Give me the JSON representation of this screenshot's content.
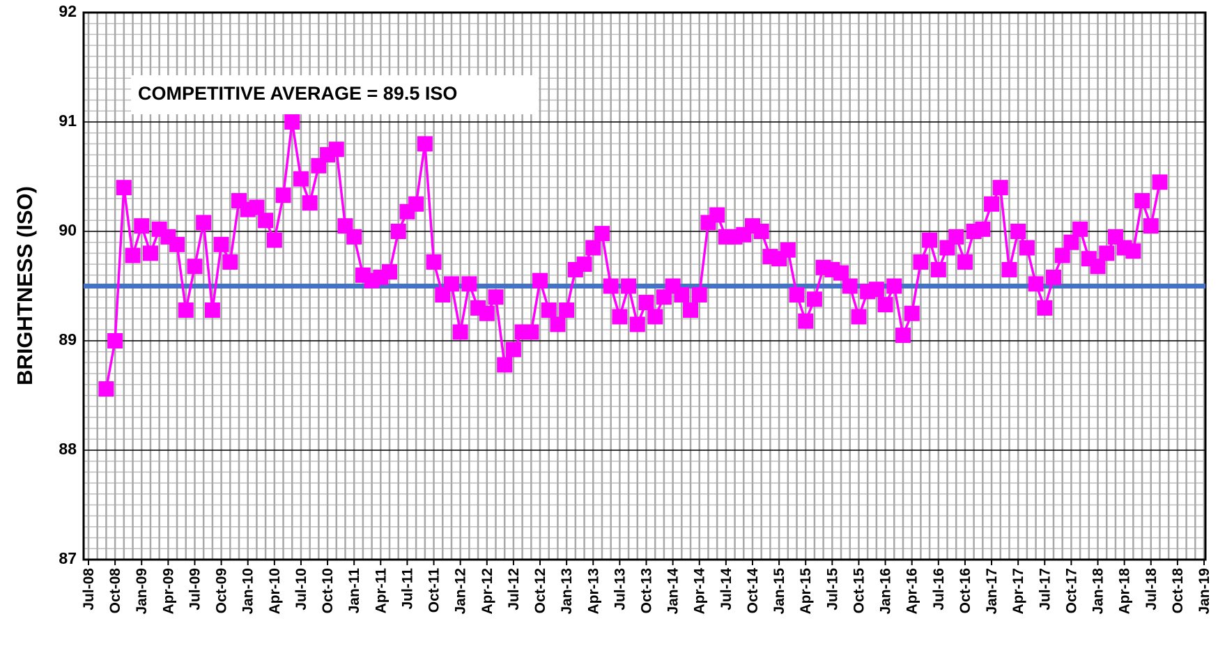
{
  "chart_data": {
    "type": "line",
    "y_label": "BRIGHTNESS (ISO)",
    "categories": [
      "Jul-08",
      null,
      null,
      "Oct-08",
      null,
      null,
      "Jan-09",
      null,
      null,
      "Apr-09",
      null,
      null,
      "Jul-09",
      null,
      null,
      "Oct-09",
      null,
      null,
      "Jan-10",
      null,
      null,
      "Apr-10",
      null,
      null,
      "Jul-10",
      null,
      null,
      "Oct-10",
      null,
      null,
      "Jan-11",
      null,
      null,
      "Apr-11",
      null,
      null,
      "Jul-11",
      null,
      null,
      "Oct-11",
      null,
      null,
      "Jan-12",
      null,
      null,
      "Apr-12",
      null,
      null,
      "Jul-12",
      null,
      null,
      "Oct-12",
      null,
      null,
      "Jan-13",
      null,
      null,
      "Apr-13",
      null,
      null,
      "Jul-13",
      null,
      null,
      "Oct-13",
      null,
      null,
      "Jan-14",
      null,
      null,
      "Apr-14",
      null,
      null,
      "Jul-14",
      null,
      null,
      "Oct-14",
      null,
      null,
      "Jan-15",
      null,
      null,
      "Apr-15",
      null,
      null,
      "Jul-15",
      null,
      null,
      "Oct-15",
      null,
      null,
      "Jan-16",
      null,
      null,
      "Apr-16",
      null,
      null,
      "Jul-16",
      null,
      null,
      "Oct-16",
      null,
      null,
      "Jan-17",
      null,
      null,
      "Apr-17",
      null,
      null,
      "Jul-17",
      null,
      null,
      "Oct-17",
      null,
      null,
      "Jan-18",
      null,
      null,
      "Apr-18",
      null,
      null,
      "Jul-18",
      null,
      null,
      "Oct-18",
      null,
      null,
      "Jan-19"
    ],
    "series": [
      {
        "name": "Brightness",
        "color": "#ff00ff",
        "values": [
          null,
          null,
          88.56,
          89.0,
          90.4,
          89.78,
          90.05,
          89.8,
          90.02,
          89.95,
          89.88,
          89.28,
          89.68,
          90.08,
          89.28,
          89.88,
          89.72,
          90.28,
          90.2,
          90.22,
          90.1,
          89.92,
          90.33,
          91.0,
          90.48,
          90.26,
          90.6,
          90.7,
          90.75,
          90.05,
          89.95,
          89.6,
          89.55,
          89.58,
          89.63,
          90.0,
          90.18,
          90.25,
          90.8,
          89.72,
          89.42,
          89.52,
          89.08,
          89.52,
          89.3,
          89.25,
          89.4,
          88.78,
          88.92,
          89.08,
          89.08,
          89.55,
          89.28,
          89.15,
          89.28,
          89.65,
          89.7,
          89.85,
          89.98,
          89.5,
          89.22,
          89.5,
          89.15,
          89.35,
          89.22,
          89.4,
          89.5,
          89.42,
          89.28,
          89.42,
          90.08,
          90.15,
          89.95,
          89.95,
          89.97,
          90.05,
          90.0,
          89.77,
          89.75,
          89.83,
          89.42,
          89.18,
          89.38,
          89.67,
          89.65,
          89.62,
          89.5,
          89.22,
          89.45,
          89.47,
          89.33,
          89.5,
          89.05,
          89.25,
          89.72,
          89.92,
          89.65,
          89.85,
          89.95,
          89.72,
          90.0,
          90.02,
          90.25,
          90.4,
          89.65,
          90.0,
          89.85,
          89.52,
          89.3,
          89.58,
          89.78,
          89.9,
          90.02,
          89.75,
          89.68,
          89.8,
          89.95,
          89.85,
          89.82,
          90.28,
          90.05,
          90.45,
          null,
          null,
          null,
          null,
          null
        ]
      }
    ],
    "reference_line": {
      "value": 89.5,
      "color": "#4472c4",
      "label": "COMPETITIVE AVERAGE = 89.5 ISO"
    },
    "ylim": [
      87,
      92
    ],
    "yticks": [
      87,
      88,
      89,
      90,
      91,
      92
    ],
    "grid": true
  }
}
